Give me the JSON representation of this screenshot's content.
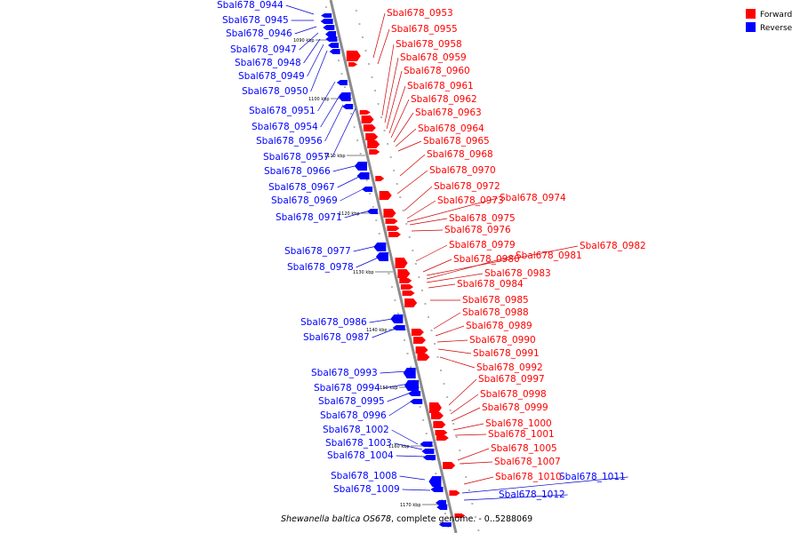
{
  "caption": {
    "organism": "Shewanella baltica OS678",
    "rest": ", complete genome. - 0..5288069"
  },
  "legend": [
    {
      "label": "Forward",
      "color": "#ff0000"
    },
    {
      "label": "Reverse",
      "color": "#0000ff"
    }
  ],
  "colors": {
    "forward": "#ff0000",
    "reverse": "#0000ff",
    "forward_leader": "#cc0000",
    "reverse_leader": "#0000cc",
    "axis": "#8c8c8c"
  },
  "kbp_marks": [
    "1090 kbp",
    "1100 kbp",
    "1110 kbp",
    "1120 kbp",
    "1130 kbp",
    "1140 kbp",
    "1150 kbp",
    "1160 kbp",
    "1170 kbp"
  ],
  "reverse_genes": [
    "Sbal678_0944",
    "Sbal678_0945",
    "Sbal678_0946",
    "Sbal678_0947",
    "Sbal678_0948",
    "Sbal678_0949",
    "Sbal678_0950",
    "Sbal678_0951",
    "Sbal678_0954",
    "Sbal678_0956",
    "Sbal678_0957",
    "Sbal678_0966",
    "Sbal678_0967",
    "Sbal678_0969",
    "Sbal678_0971",
    "Sbal678_0977",
    "Sbal678_0978",
    "Sbal678_0986",
    "Sbal678_0987",
    "Sbal678_0993",
    "Sbal678_0994",
    "Sbal678_0995",
    "Sbal678_0996",
    "Sbal678_1002",
    "Sbal678_1003",
    "Sbal678_1004",
    "Sbal678_1008",
    "Sbal678_1009",
    "Sbal678_1011",
    "Sbal678_1012"
  ],
  "forward_genes": [
    "Sbal678_0953",
    "Sbal678_0955",
    "Sbal678_0958",
    "Sbal678_0959",
    "Sbal678_0960",
    "Sbal678_0961",
    "Sbal678_0962",
    "Sbal678_0963",
    "Sbal678_0964",
    "Sbal678_0965",
    "Sbal678_0968",
    "Sbal678_0970",
    "Sbal678_0972",
    "Sbal678_0973",
    "Sbal678_0974",
    "Sbal678_0975",
    "Sbal678_0976",
    "Sbal678_0979",
    "Sbal678_0980",
    "Sbal678_0981",
    "Sbal678_0982",
    "Sbal678_0983",
    "Sbal678_0984",
    "Sbal678_0985",
    "Sbal678_0988",
    "Sbal678_0989",
    "Sbal678_0990",
    "Sbal678_0991",
    "Sbal678_0992",
    "Sbal678_0997",
    "Sbal678_0998",
    "Sbal678_0999",
    "Sbal678_1000",
    "Sbal678_1001",
    "Sbal678_1005",
    "Sbal678_1007",
    "Sbal678_1010"
  ]
}
